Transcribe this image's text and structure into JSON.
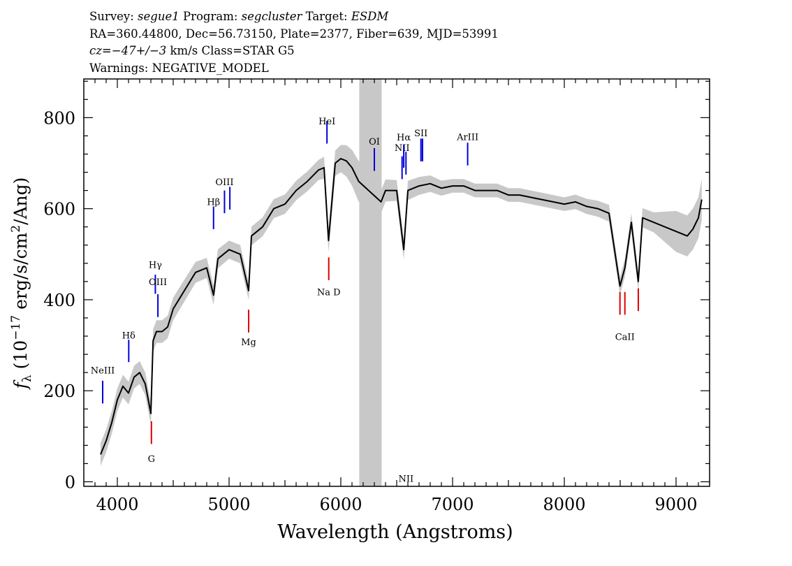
{
  "header": {
    "survey_label": "Survey:",
    "survey_value": "segue1",
    "program_label": "Program:",
    "program_value": "segcluster",
    "target_label": "Target:",
    "target_value": "ESDM",
    "line2": "RA=360.44800, Dec=56.73150, Plate=2377, Fiber=639, MJD=53991",
    "cz_label": "cz=",
    "cz_value": "−47+/−3",
    "cz_unit": "km/s",
    "class_text": "Class=STAR G5",
    "warnings": "Warnings: NEGATIVE_MODEL"
  },
  "chart_data": {
    "type": "line",
    "title": "Survey: segue1 Program: segcluster Target: ESDM",
    "xlabel": "Wavelength (Angstroms)",
    "ylabel_base": "f",
    "ylabel_sub": "λ",
    "ylabel_mid": "(10",
    "ylabel_exp": "−17",
    "ylabel_mid2": "erg/s/cm",
    "ylabel_exp2": "2",
    "ylabel_end": "/Ang)",
    "xlim": [
      3700,
      9300
    ],
    "ylim": [
      -10,
      885
    ],
    "x_ticks": [
      4000,
      5000,
      6000,
      7000,
      8000,
      9000
    ],
    "x_tick_labels": [
      "4000",
      "5000",
      "6000",
      "7000",
      "8000",
      "9000"
    ],
    "y_ticks": [
      0,
      200,
      400,
      600,
      800
    ],
    "y_tick_labels": [
      "0",
      "200",
      "400",
      "600",
      "800"
    ],
    "masked_band": [
      6165,
      6365
    ],
    "colors": {
      "flux": "#000000",
      "error": "#c8c8c8",
      "mask": "#c8c8c8",
      "emission": "#0000dd",
      "absorption": "#dd0000"
    },
    "series": [
      {
        "name": "flux",
        "x": [
          3850,
          3900,
          3950,
          4000,
          4050,
          4100,
          4150,
          4200,
          4250,
          4300,
          4320,
          4350,
          4400,
          4450,
          4500,
          4600,
          4700,
          4800,
          4861,
          4900,
          5000,
          5100,
          5175,
          5200,
          5300,
          5400,
          5500,
          5600,
          5700,
          5800,
          5850,
          5890,
          5950,
          6000,
          6050,
          6100,
          6160,
          6360,
          6400,
          6500,
          6563,
          6600,
          6700,
          6800,
          6900,
          7000,
          7100,
          7200,
          7300,
          7400,
          7500,
          7600,
          7700,
          7800,
          7900,
          8000,
          8100,
          8200,
          8300,
          8400,
          8498,
          8542,
          8600,
          8662,
          8700,
          8800,
          8900,
          9000,
          9100,
          9150,
          9200,
          9230
        ],
        "y": [
          60,
          90,
          130,
          180,
          210,
          195,
          230,
          240,
          215,
          150,
          310,
          330,
          330,
          340,
          380,
          420,
          460,
          470,
          410,
          490,
          510,
          500,
          420,
          540,
          560,
          600,
          610,
          640,
          660,
          685,
          690,
          530,
          700,
          710,
          705,
          690,
          660,
          615,
          640,
          640,
          510,
          640,
          650,
          655,
          645,
          650,
          650,
          640,
          640,
          640,
          630,
          630,
          625,
          620,
          615,
          610,
          615,
          605,
          600,
          590,
          430,
          470,
          570,
          440,
          580,
          570,
          560,
          550,
          540,
          555,
          580,
          620
        ]
      },
      {
        "name": "error_halfwidth",
        "x": [
          3850,
          4500,
          5000,
          5800,
          6000,
          6160,
          6360,
          7000,
          8000,
          8800,
          9000,
          9230
        ],
        "y": [
          25,
          25,
          20,
          22,
          30,
          45,
          25,
          15,
          15,
          22,
          45,
          45
        ]
      }
    ],
    "lines": [
      {
        "label": "NeIII",
        "wave": 3869,
        "kind": "emission",
        "text_flux": 238,
        "bar_top_flux": 222,
        "bar_bottom_flux": 172
      },
      {
        "label": "Hδ",
        "wave": 4102,
        "kind": "emission",
        "text_flux": 315,
        "bar_top_flux": 312,
        "bar_bottom_flux": 263
      },
      {
        "label": "Hγ",
        "wave": 4340,
        "kind": "emission",
        "text_flux": 470,
        "bar_top_flux": 455,
        "bar_bottom_flux": 413
      },
      {
        "label": "OIII",
        "wave": 4363,
        "kind": "emission",
        "text_flux": 432,
        "bar_top_flux": 412,
        "bar_bottom_flux": 362
      },
      {
        "label": "Hβ",
        "wave": 4861,
        "kind": "emission",
        "text_flux": 608,
        "bar_top_flux": 605,
        "bar_bottom_flux": 555
      },
      {
        "label": "OIII",
        "wave": 4959,
        "kind": "emission",
        "text_flux": 652,
        "bar_top_flux": 640,
        "bar_bottom_flux": 590
      },
      {
        "label": "",
        "wave": 5007,
        "kind": "emission",
        "text_flux": 652,
        "bar_top_flux": 648,
        "bar_bottom_flux": 598
      },
      {
        "label": "HeI",
        "wave": 5876,
        "kind": "emission",
        "text_flux": 785,
        "bar_top_flux": 793,
        "bar_bottom_flux": 743
      },
      {
        "label": "OI",
        "wave": 6300,
        "kind": "emission",
        "text_flux": 741,
        "bar_top_flux": 733,
        "bar_bottom_flux": 683
      },
      {
        "label": "NII",
        "wave": 6548,
        "kind": "emission",
        "text_flux": 727,
        "bar_top_flux": 715,
        "bar_bottom_flux": 665
      },
      {
        "label": "Hα",
        "wave": 6563,
        "kind": "emission",
        "text_flux": 750,
        "bar_top_flux": 740,
        "bar_bottom_flux": 690
      },
      {
        "label": "NII",
        "wave": 6583,
        "kind": "emission",
        "text_flux": 0,
        "bar_top_flux": 725,
        "bar_bottom_flux": 675
      },
      {
        "label": "SII",
        "wave": 6717,
        "kind": "emission",
        "text_flux": 759,
        "bar_top_flux": 754,
        "bar_bottom_flux": 704
      },
      {
        "label": "",
        "wave": 6731,
        "kind": "emission",
        "text_flux": 0,
        "bar_top_flux": 754,
        "bar_bottom_flux": 704
      },
      {
        "label": "ArIII",
        "wave": 7135,
        "kind": "emission",
        "text_flux": 751,
        "bar_top_flux": 745,
        "bar_bottom_flux": 695
      },
      {
        "label": "G",
        "wave": 4305,
        "kind": "absorption",
        "text_flux": 44,
        "bar_top_flux": 133,
        "bar_bottom_flux": 83
      },
      {
        "label": "Mg",
        "wave": 5175,
        "kind": "absorption",
        "text_flux": 300,
        "bar_top_flux": 378,
        "bar_bottom_flux": 328
      },
      {
        "label": "Na D",
        "wave": 5892,
        "kind": "absorption",
        "text_flux": 410,
        "bar_top_flux": 493,
        "bar_bottom_flux": 443
      },
      {
        "label": "CaII",
        "wave": 8542,
        "kind": "absorption",
        "text_flux": 312,
        "bar_top_flux": 417,
        "bar_bottom_flux": 367
      },
      {
        "label": "",
        "wave": 8498,
        "kind": "absorption",
        "text_flux": 0,
        "bar_top_flux": 417,
        "bar_bottom_flux": 367
      },
      {
        "label": "",
        "wave": 8662,
        "kind": "absorption",
        "text_flux": 0,
        "bar_top_flux": 425,
        "bar_bottom_flux": 375
      }
    ]
  }
}
